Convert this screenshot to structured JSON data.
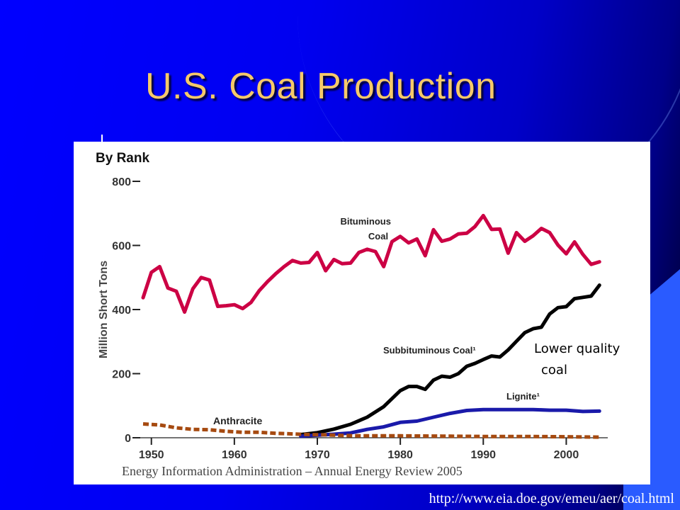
{
  "slide": {
    "title": "U.S. Coal Production",
    "source": "Energy Information Administration – Annual Energy Review 2005",
    "url": "http://www.eia.doe.gov/emeu/aer/coal.html"
  },
  "colors": {
    "title": "#f5c96a",
    "background": "#0000ff",
    "bituminous": "#cc0044",
    "subbituminous": "#000000",
    "lignite": "#1a1aaa",
    "anthracite": "#a64a10"
  },
  "chart_data": {
    "type": "line",
    "title": "By Rank",
    "ylabel": "Million Short Tons",
    "xlabel": "",
    "xlim": [
      1949,
      2005
    ],
    "ylim": [
      0,
      800
    ],
    "x_ticks": [
      1950,
      1960,
      1970,
      1980,
      1990,
      2000
    ],
    "y_ticks": [
      0,
      200,
      400,
      600,
      800
    ],
    "grid": false,
    "annotation": "Lower quality coal",
    "series": [
      {
        "name": "Bituminous Coal",
        "style": "solid",
        "x": [
          1949,
          1950,
          1951,
          1952,
          1953,
          1954,
          1955,
          1956,
          1957,
          1958,
          1959,
          1960,
          1961,
          1962,
          1963,
          1964,
          1965,
          1966,
          1967,
          1968,
          1969,
          1970,
          1971,
          1972,
          1973,
          1974,
          1975,
          1976,
          1977,
          1978,
          1979,
          1980,
          1981,
          1982,
          1983,
          1984,
          1985,
          1986,
          1987,
          1988,
          1989,
          1990,
          1991,
          1992,
          1993,
          1994,
          1995,
          1996,
          1997,
          1998,
          1999,
          2000,
          2001,
          2002,
          2003,
          2004
        ],
        "values": [
          437,
          516,
          534,
          467,
          457,
          392,
          465,
          500,
          492,
          410,
          412,
          415,
          403,
          422,
          459,
          487,
          512,
          534,
          553,
          545,
          547,
          578,
          521,
          556,
          543,
          545,
          578,
          588,
          581,
          534,
          612,
          628,
          608,
          620,
          568,
          649,
          613,
          620,
          636,
          638,
          659,
          693,
          650,
          651,
          576,
          640,
          613,
          630,
          653,
          640,
          601,
          574,
          611,
          572,
          541,
          549
        ]
      },
      {
        "name": "Subbituminous Coal",
        "style": "solid",
        "x": [
          1968,
          1970,
          1972,
          1974,
          1976,
          1978,
          1980,
          1981,
          1982,
          1983,
          1984,
          1985,
          1986,
          1987,
          1988,
          1989,
          1990,
          1991,
          1992,
          1993,
          1994,
          1995,
          1996,
          1997,
          1998,
          1999,
          2000,
          2001,
          2002,
          2003,
          2004
        ],
        "values": [
          10,
          16,
          27,
          42,
          64,
          97,
          147,
          160,
          160,
          151,
          180,
          192,
          189,
          200,
          223,
          232,
          244,
          255,
          252,
          274,
          301,
          328,
          340,
          345,
          386,
          406,
          409,
          434,
          438,
          442,
          476
        ]
      },
      {
        "name": "Lignite",
        "style": "solid",
        "x": [
          1968,
          1970,
          1972,
          1974,
          1976,
          1978,
          1980,
          1982,
          1984,
          1986,
          1988,
          1990,
          1992,
          1994,
          1996,
          1998,
          2000,
          2002,
          2004
        ],
        "values": [
          5,
          8,
          11,
          15,
          26,
          34,
          48,
          52,
          64,
          76,
          85,
          88,
          88,
          88,
          88,
          86,
          86,
          82,
          83
        ]
      },
      {
        "name": "Anthracite",
        "style": "dashed",
        "x": [
          1949,
          1951,
          1953,
          1955,
          1957,
          1959,
          1961,
          1963,
          1965,
          1967,
          1969,
          1971,
          1973,
          1975,
          1980,
          1985,
          1990,
          1995,
          2000,
          2004
        ],
        "values": [
          43,
          40,
          31,
          26,
          25,
          20,
          17,
          17,
          14,
          12,
          10,
          9,
          7,
          6,
          6,
          5,
          4,
          4,
          3,
          2
        ]
      }
    ],
    "labels": [
      "Bituminous Coal",
      "Subbituminous Coal¹",
      "Lignite¹",
      "Anthracite"
    ]
  }
}
